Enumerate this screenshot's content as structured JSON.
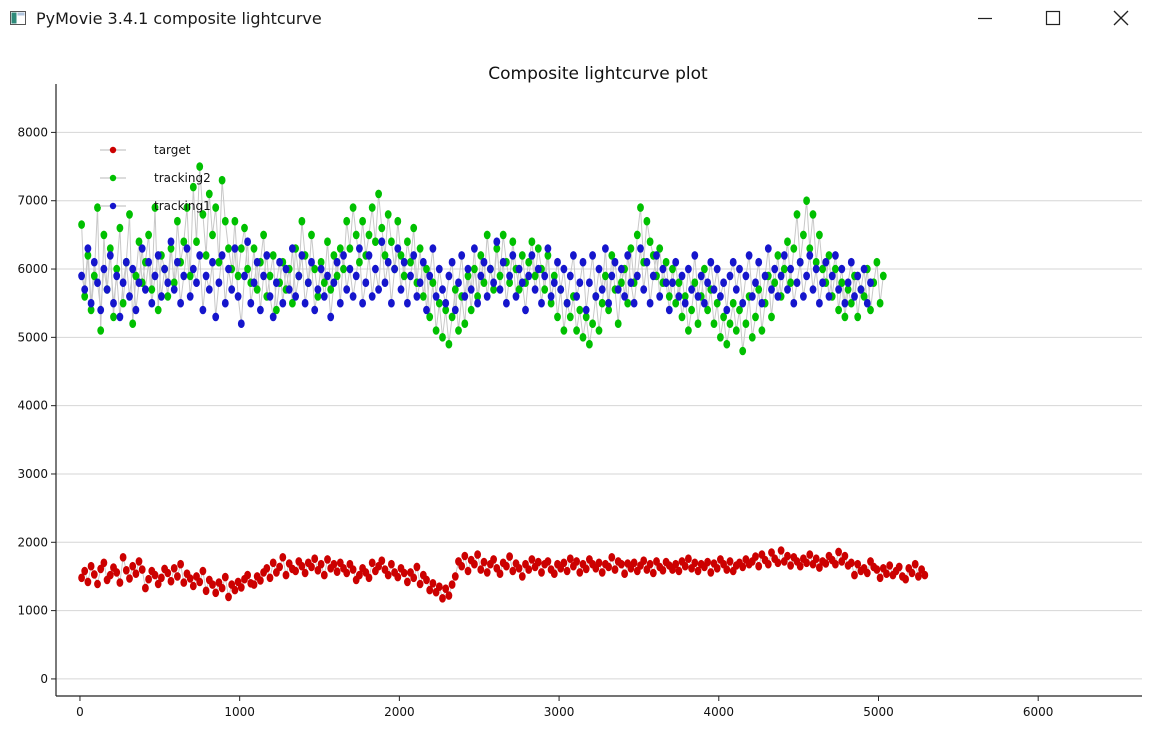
{
  "window": {
    "title": "PyMovie 3.4.1 composite lightcurve",
    "icon": "app-window-icon",
    "controls": {
      "minimize": "minimize-icon",
      "maximize": "maximize-icon",
      "close": "close-icon"
    }
  },
  "colors": {
    "target": "#cc0000",
    "tracking2": "#00c000",
    "tracking1": "#1515cc",
    "connector": "#c8c8c8",
    "grid": "#d6d6d6",
    "axis": "#222222"
  },
  "chart_data": {
    "type": "scatter",
    "title": "Composite lightcurve plot",
    "xlabel": "",
    "ylabel": "",
    "xlim": [
      -150,
      6650
    ],
    "ylim": [
      -250,
      8650
    ],
    "xticks": [
      0,
      1000,
      2000,
      3000,
      4000,
      5000,
      6000
    ],
    "yticks": [
      0,
      1000,
      2000,
      3000,
      4000,
      5000,
      6000,
      7000,
      8000
    ],
    "grid": "horizontal",
    "legend_position": "top-left",
    "point_spacing": 20,
    "series": [
      {
        "name": "target",
        "x_start": 10,
        "x_step": 20,
        "values": [
          1480,
          1580,
          1420,
          1650,
          1530,
          1390,
          1610,
          1700,
          1450,
          1520,
          1630,
          1560,
          1410,
          1780,
          1590,
          1470,
          1650,
          1540,
          1720,
          1600,
          1330,
          1460,
          1580,
          1520,
          1390,
          1480,
          1610,
          1550,
          1430,
          1620,
          1500,
          1680,
          1410,
          1540,
          1470,
          1360,
          1500,
          1420,
          1580,
          1290,
          1450,
          1380,
          1260,
          1410,
          1330,
          1490,
          1200,
          1380,
          1300,
          1420,
          1340,
          1460,
          1520,
          1400,
          1380,
          1500,
          1440,
          1560,
          1620,
          1480,
          1700,
          1560,
          1640,
          1780,
          1520,
          1690,
          1610,
          1580,
          1720,
          1650,
          1550,
          1700,
          1640,
          1760,
          1590,
          1680,
          1520,
          1750,
          1620,
          1680,
          1570,
          1700,
          1620,
          1550,
          1680,
          1600,
          1450,
          1520,
          1620,
          1560,
          1480,
          1700,
          1580,
          1650,
          1730,
          1600,
          1520,
          1680,
          1560,
          1490,
          1620,
          1550,
          1420,
          1560,
          1480,
          1640,
          1390,
          1520,
          1450,
          1300,
          1400,
          1270,
          1350,
          1180,
          1320,
          1220,
          1380,
          1500,
          1720,
          1650,
          1800,
          1580,
          1740,
          1680,
          1820,
          1600,
          1710,
          1560,
          1680,
          1750,
          1620,
          1540,
          1700,
          1650,
          1790,
          1580,
          1690,
          1620,
          1500,
          1680,
          1600,
          1750,
          1640,
          1710,
          1560,
          1680,
          1720,
          1600,
          1540,
          1680,
          1620,
          1700,
          1580,
          1760,
          1650,
          1720,
          1560,
          1680,
          1610,
          1750,
          1680,
          1620,
          1700,
          1560,
          1680,
          1640,
          1780,
          1600,
          1720,
          1680,
          1540,
          1690,
          1620,
          1700,
          1580,
          1660,
          1730,
          1600,
          1680,
          1550,
          1720,
          1640,
          1590,
          1710,
          1660,
          1600,
          1680,
          1580,
          1720,
          1650,
          1760,
          1620,
          1700,
          1580,
          1680,
          1640,
          1710,
          1560,
          1690,
          1620,
          1750,
          1680,
          1600,
          1720,
          1580,
          1660,
          1700,
          1640,
          1750,
          1680,
          1720,
          1790,
          1650,
          1820,
          1740,
          1680,
          1850,
          1760,
          1700,
          1880,
          1720,
          1800,
          1660,
          1780,
          1720,
          1650,
          1760,
          1700,
          1820,
          1680,
          1760,
          1630,
          1720,
          1690,
          1800,
          1740,
          1680,
          1860,
          1720,
          1800,
          1660,
          1700,
          1520,
          1680,
          1580,
          1620,
          1550,
          1720,
          1640,
          1600,
          1480,
          1620,
          1540,
          1660,
          1520,
          1580,
          1640,
          1500,
          1460,
          1620,
          1550,
          1680,
          1500,
          1600,
          1520
        ]
      },
      {
        "name": "tracking2",
        "x_start": 10,
        "x_step": 20,
        "values": [
          6650,
          5600,
          6200,
          5400,
          5900,
          6900,
          5100,
          6500,
          5700,
          6300,
          5300,
          6000,
          6600,
          5500,
          6100,
          6800,
          5200,
          5900,
          6400,
          5800,
          6100,
          6500,
          5700,
          6900,
          5400,
          6200,
          6000,
          5600,
          6300,
          5800,
          6700,
          6100,
          6400,
          6900,
          5900,
          7200,
          6400,
          7500,
          6800,
          6200,
          7100,
          6500,
          6900,
          6100,
          7300,
          6700,
          6300,
          6000,
          6700,
          5900,
          6300,
          6600,
          6000,
          5800,
          6300,
          5700,
          6100,
          6500,
          5600,
          5900,
          6200,
          5400,
          5800,
          6100,
          5700,
          6000,
          5500,
          6300,
          5900,
          6700,
          6200,
          5800,
          6500,
          6000,
          5600,
          6100,
          5800,
          6400,
          5700,
          6200,
          5900,
          6300,
          6000,
          6700,
          6300,
          6900,
          6500,
          6100,
          6700,
          6200,
          6500,
          6900,
          6400,
          7100,
          6600,
          6200,
          6800,
          6400,
          6000,
          6700,
          6200,
          5900,
          6400,
          6100,
          6600,
          5800,
          6300,
          5600,
          6000,
          5300,
          5800,
          5100,
          5500,
          5000,
          5400,
          4900,
          5300,
          5700,
          5100,
          5600,
          5200,
          5900,
          5400,
          6000,
          5600,
          6200,
          5800,
          6500,
          6000,
          5700,
          6300,
          5900,
          6500,
          6100,
          5800,
          6400,
          6000,
          5700,
          6200,
          5800,
          6100,
          6400,
          5900,
          6300,
          6000,
          5700,
          6200,
          5500,
          5900,
          5300,
          5700,
          5100,
          5500,
          5300,
          5600,
          5100,
          5400,
          5000,
          5300,
          4900,
          5200,
          5600,
          5100,
          5500,
          5900,
          5400,
          6200,
          5700,
          5200,
          5800,
          6000,
          5500,
          6300,
          5800,
          6500,
          6900,
          6100,
          6700,
          6400,
          6200,
          5900,
          6300,
          5800,
          6100,
          5600,
          6000,
          5500,
          5800,
          5300,
          5600,
          5100,
          5400,
          5800,
          5200,
          5600,
          6000,
          5400,
          5700,
          5200,
          5500,
          5000,
          5300,
          4900,
          5200,
          5500,
          5100,
          5400,
          4800,
          5200,
          5600,
          5000,
          5300,
          5700,
          5100,
          5500,
          5900,
          5300,
          5800,
          6200,
          5600,
          6000,
          6400,
          5800,
          6300,
          6800,
          6100,
          6500,
          7000,
          6300,
          6800,
          6100,
          6500,
          6000,
          5800,
          6200,
          5600,
          6000,
          5400,
          5800,
          5300,
          5700,
          5500,
          5900,
          5300,
          5700,
          5600,
          6000,
          5400,
          5800,
          6100,
          5500,
          5900
        ]
      },
      {
        "name": "tracking1",
        "x_start": 10,
        "x_step": 20,
        "values": [
          5900,
          5700,
          6300,
          5500,
          6100,
          5800,
          5400,
          6000,
          5700,
          6200,
          5500,
          5900,
          5300,
          5800,
          6100,
          5600,
          6000,
          5400,
          5800,
          6300,
          5700,
          6100,
          5500,
          5900,
          6200,
          5600,
          6000,
          5800,
          6400,
          5700,
          6100,
          5500,
          5900,
          6300,
          5600,
          6000,
          5800,
          6200,
          5400,
          5900,
          5700,
          6100,
          5300,
          5800,
          6200,
          5500,
          6000,
          5700,
          6300,
          5600,
          5200,
          5900,
          6400,
          5500,
          5800,
          6100,
          5400,
          5900,
          6200,
          5600,
          5300,
          5800,
          6100,
          5500,
          6000,
          5700,
          6300,
          5600,
          5900,
          6200,
          5500,
          5800,
          6100,
          5400,
          5700,
          6000,
          5600,
          5900,
          5300,
          5800,
          6100,
          5500,
          6200,
          5700,
          6000,
          5600,
          5900,
          6300,
          5500,
          5800,
          6200,
          5600,
          6000,
          5700,
          6400,
          5800,
          6100,
          5500,
          6000,
          6300,
          5700,
          6100,
          5500,
          5900,
          6200,
          5600,
          5800,
          6100,
          5400,
          5900,
          6300,
          5600,
          6000,
          5700,
          5500,
          5900,
          6100,
          5400,
          5800,
          6200,
          5600,
          6000,
          5700,
          6300,
          5500,
          5900,
          6100,
          5600,
          6000,
          5800,
          6400,
          5700,
          6100,
          5500,
          5900,
          6200,
          5600,
          6000,
          5800,
          5400,
          5900,
          6200,
          5700,
          6000,
          5500,
          5900,
          6300,
          5600,
          5800,
          6100,
          5700,
          6000,
          5500,
          5900,
          6200,
          5600,
          5800,
          6100,
          5400,
          5800,
          6200,
          5600,
          6000,
          5700,
          6300,
          5500,
          5900,
          6100,
          5700,
          6000,
          5600,
          6200,
          5800,
          5500,
          5900,
          6300,
          5700,
          6100,
          5500,
          5900,
          6200,
          5600,
          6000,
          5800,
          5400,
          5800,
          6100,
          5600,
          5900,
          5500,
          6000,
          5700,
          6200,
          5600,
          5900,
          5500,
          5800,
          6100,
          5700,
          6000,
          5600,
          5800,
          5400,
          5900,
          6100,
          5700,
          6000,
          5500,
          5900,
          6200,
          5600,
          5800,
          6100,
          5500,
          5900,
          6300,
          5700,
          6000,
          5600,
          5900,
          6200,
          5700,
          6000,
          5500,
          5800,
          6100,
          5600,
          5900,
          6200,
          5700,
          6000,
          5500,
          5800,
          6100,
          5600,
          5900,
          6200,
          5700,
          6000,
          5500,
          5800,
          6100,
          5600,
          5900,
          5700,
          6000,
          5500,
          5800
        ]
      }
    ]
  }
}
